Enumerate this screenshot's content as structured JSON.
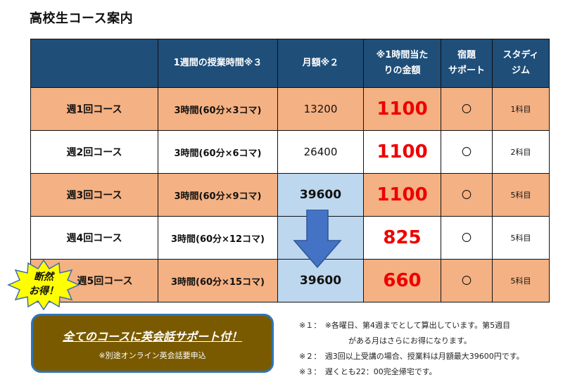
{
  "title": "高校生コース案内",
  "headers": {
    "course": "",
    "hours": "1週間の授業時間※３",
    "monthly": "月額※２",
    "rate_line1": "※1時間当た",
    "rate_line2": "りの金額",
    "homework_line1": "宿題",
    "homework_line2": "サポート",
    "study_line1": "スタディ",
    "study_line2": "ジム"
  },
  "rows": [
    {
      "name": "週1回コース",
      "hours": "3時間(60分×3コマ)",
      "monthly": "13200",
      "rate": "1100",
      "homework": "〇",
      "studygym": "1科目"
    },
    {
      "name": "週2回コース",
      "hours": "3時間(60分×6コマ)",
      "monthly": "26400",
      "rate": "1100",
      "homework": "〇",
      "studygym": "2科目"
    },
    {
      "name": "週3回コース",
      "hours": "3時間(60分×9コマ)",
      "monthly": "39600",
      "rate": "1100",
      "homework": "〇",
      "studygym": "5科目"
    },
    {
      "name": "週4回コース",
      "hours": "3時間(60分×12コマ)",
      "monthly": "",
      "rate": "825",
      "homework": "〇",
      "studygym": "5科目"
    },
    {
      "name": "週5回コース",
      "hours": "3時間(60分×15コマ)",
      "monthly": "39600",
      "rate": "660",
      "homework": "〇",
      "studygym": "5科目"
    }
  ],
  "badge": {
    "line1": "断然",
    "line2": "お得！"
  },
  "english_box": {
    "main": "全てのコースに英会話サポート付！",
    "sub": "※別途オンライン英会話要申込"
  },
  "notes": {
    "note1_line1": "※１：　※各曜日、第4週までとして算出しています。第5週目",
    "note1_line2": "がある月はさらにお得になります。",
    "note2": "※２：　週3回以上受講の場合、授業料は月額最大39600円です。",
    "note3": "※３：　遅くとも22：00完全帰宅です。"
  },
  "colors": {
    "header_bg": "#1f4e79",
    "row_shade": "#f4b183",
    "highlight_cell": "#bdd7ee",
    "rate_red": "#ee0000",
    "arrow": "#4472c4",
    "badge_fill": "#ffff00",
    "box_fill": "#7a5a00",
    "box_border": "#2e75b6"
  },
  "icons": {
    "arrow": "down-arrow-icon",
    "badge": "starburst-badge"
  }
}
